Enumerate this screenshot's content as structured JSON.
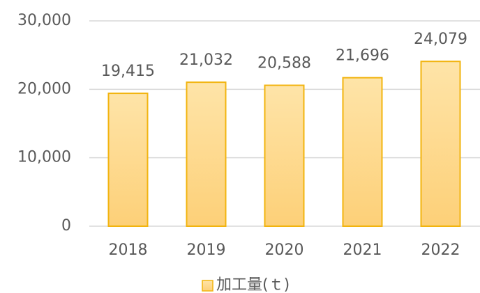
{
  "chart_data": {
    "type": "bar",
    "categories": [
      "2018",
      "2019",
      "2020",
      "2021",
      "2022"
    ],
    "series": [
      {
        "name": "加工量(ｔ)",
        "color": "#fdd98a",
        "values": [
          19415,
          21032,
          20588,
          21696,
          24079
        ],
        "value_labels": [
          "19,415",
          "21,032",
          "20,588",
          "21,696",
          "24,079"
        ]
      }
    ],
    "ylim": [
      0,
      30000
    ],
    "yticks": [
      0,
      {
        "value": 10000,
        "label": "10,000"
      },
      {
        "value": 20000,
        "label": "20,000"
      },
      {
        "value": 30000,
        "label": "30,000"
      }
    ],
    "grid": true,
    "legend": "bottom"
  }
}
